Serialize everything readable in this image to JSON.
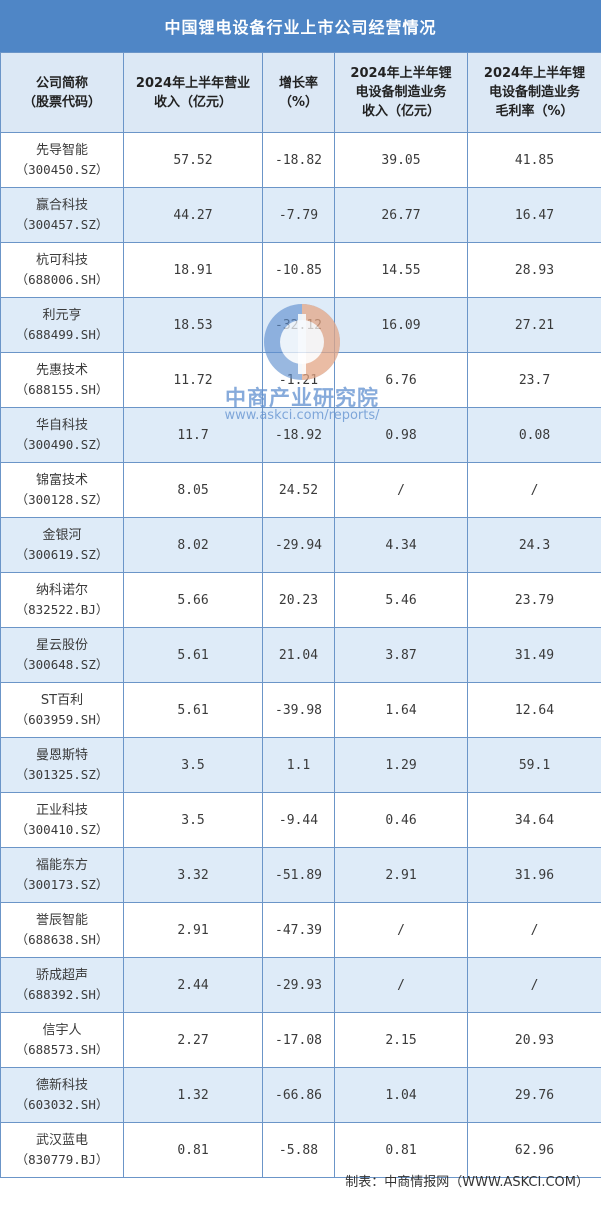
{
  "title": "中国锂电设备行业上市公司经营情况",
  "headers": [
    {
      "line1": "公司简称",
      "line2": "（股票代码）"
    },
    {
      "line1": "2024年上半年营业",
      "line2": "收入（亿元）"
    },
    {
      "line1": "增长率",
      "line2": "（%）"
    },
    {
      "line1": "2024年上半年锂",
      "line2": "电设备制造业务",
      "line3": "收入（亿元）"
    },
    {
      "line1": "2024年上半年锂",
      "line2": "电设备制造业务",
      "line3": "毛利率（%）"
    }
  ],
  "rows": [
    {
      "name": "先导智能",
      "code": "（300450.SZ）",
      "revenue": "57.52",
      "growth": "-18.82",
      "seg_revenue": "39.05",
      "margin": "41.85"
    },
    {
      "name": "赢合科技",
      "code": "（300457.SZ）",
      "revenue": "44.27",
      "growth": "-7.79",
      "seg_revenue": "26.77",
      "margin": "16.47"
    },
    {
      "name": "杭可科技",
      "code": "（688006.SH）",
      "revenue": "18.91",
      "growth": "-10.85",
      "seg_revenue": "14.55",
      "margin": "28.93"
    },
    {
      "name": "利元亨",
      "code": "（688499.SH）",
      "revenue": "18.53",
      "growth": "-32.12",
      "seg_revenue": "16.09",
      "margin": "27.21"
    },
    {
      "name": "先惠技术",
      "code": "（688155.SH）",
      "revenue": "11.72",
      "growth": "-1.21",
      "seg_revenue": "6.76",
      "margin": "23.7"
    },
    {
      "name": "华自科技",
      "code": "（300490.SZ）",
      "revenue": "11.7",
      "growth": "-18.92",
      "seg_revenue": "0.98",
      "margin": "0.08"
    },
    {
      "name": "锦富技术",
      "code": "（300128.SZ）",
      "revenue": "8.05",
      "growth": "24.52",
      "seg_revenue": "/",
      "margin": "/"
    },
    {
      "name": "金银河",
      "code": "（300619.SZ）",
      "revenue": "8.02",
      "growth": "-29.94",
      "seg_revenue": "4.34",
      "margin": "24.3"
    },
    {
      "name": "纳科诺尔",
      "code": "（832522.BJ）",
      "revenue": "5.66",
      "growth": "20.23",
      "seg_revenue": "5.46",
      "margin": "23.79"
    },
    {
      "name": "星云股份",
      "code": "（300648.SZ）",
      "revenue": "5.61",
      "growth": "21.04",
      "seg_revenue": "3.87",
      "margin": "31.49"
    },
    {
      "name": "ST百利",
      "code": "（603959.SH）",
      "revenue": "5.61",
      "growth": "-39.98",
      "seg_revenue": "1.64",
      "margin": "12.64"
    },
    {
      "name": "曼恩斯特",
      "code": "（301325.SZ）",
      "revenue": "3.5",
      "growth": "1.1",
      "seg_revenue": "1.29",
      "margin": "59.1"
    },
    {
      "name": "正业科技",
      "code": "（300410.SZ）",
      "revenue": "3.5",
      "growth": "-9.44",
      "seg_revenue": "0.46",
      "margin": "34.64"
    },
    {
      "name": "福能东方",
      "code": "（300173.SZ）",
      "revenue": "3.32",
      "growth": "-51.89",
      "seg_revenue": "2.91",
      "margin": "31.96"
    },
    {
      "name": "誉辰智能",
      "code": "（688638.SH）",
      "revenue": "2.91",
      "growth": "-47.39",
      "seg_revenue": "/",
      "margin": "/"
    },
    {
      "name": "骄成超声",
      "code": "（688392.SH）",
      "revenue": "2.44",
      "growth": "-29.93",
      "seg_revenue": "/",
      "margin": "/"
    },
    {
      "name": "信宇人",
      "code": "（688573.SH）",
      "revenue": "2.27",
      "growth": "-17.08",
      "seg_revenue": "2.15",
      "margin": "20.93"
    },
    {
      "name": "德新科技",
      "code": "（603032.SH）",
      "revenue": "1.32",
      "growth": "-66.86",
      "seg_revenue": "1.04",
      "margin": "29.76"
    },
    {
      "name": "武汉蓝电",
      "code": "（830779.BJ）",
      "revenue": "0.81",
      "growth": "-5.88",
      "seg_revenue": "0.81",
      "margin": "62.96"
    }
  ],
  "source": "制表：中商情报网（WWW.ASKCI.COM）",
  "watermark": {
    "text": "中商产业研究院",
    "url": "www.askci.com/reports/"
  },
  "colors": {
    "title_bg": "#4f86c6",
    "header_bg": "#dce8f5",
    "alt_row_bg": "#deebf8",
    "border": "#6b95c8",
    "watermark_blue": "#5f8fcf",
    "watermark_orange": "#f0a77d"
  }
}
